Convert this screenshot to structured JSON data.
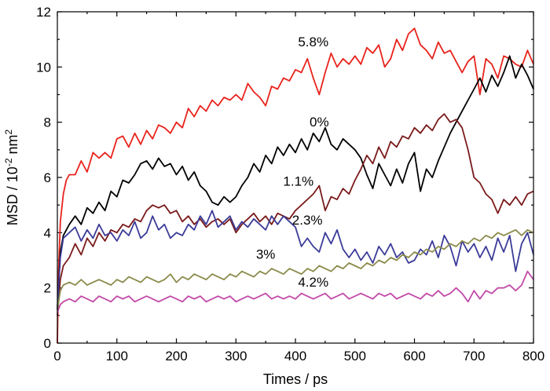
{
  "chart_data": {
    "type": "line",
    "title": "",
    "xlabel": "Times / ps",
    "ylabel_main": "MSD / 10",
    "ylabel_exp": "-2",
    "ylabel_unit": " nm",
    "ylabel_unit_exp": "2",
    "xlim": [
      0,
      800
    ],
    "ylim": [
      0,
      12
    ],
    "x_ticks": [
      0,
      100,
      200,
      300,
      400,
      500,
      600,
      700,
      800
    ],
    "y_ticks": [
      0,
      2,
      4,
      6,
      8,
      10,
      12
    ],
    "grid": false,
    "legend": "none (series labelled inline)",
    "series": [
      {
        "name": "5.8%",
        "color": "#e8231c",
        "label_at": [
          430,
          10.75
        ],
        "x": [
          0,
          2,
          5,
          10,
          15,
          20,
          30,
          40,
          50,
          60,
          70,
          80,
          90,
          100,
          110,
          120,
          130,
          140,
          150,
          160,
          170,
          180,
          190,
          200,
          210,
          220,
          230,
          240,
          250,
          260,
          270,
          280,
          290,
          300,
          310,
          320,
          330,
          340,
          350,
          360,
          370,
          380,
          390,
          400,
          410,
          420,
          430,
          440,
          450,
          460,
          470,
          480,
          490,
          500,
          510,
          520,
          530,
          540,
          550,
          560,
          570,
          580,
          590,
          600,
          610,
          620,
          630,
          640,
          650,
          660,
          670,
          680,
          690,
          700,
          710,
          720,
          730,
          740,
          750,
          760,
          770,
          780,
          790,
          800
        ],
        "y": [
          0.0,
          2.6,
          4.4,
          5.4,
          5.9,
          6.1,
          6.1,
          6.6,
          6.2,
          6.9,
          6.7,
          6.9,
          6.7,
          7.4,
          7.5,
          7.1,
          7.6,
          7.2,
          7.7,
          7.4,
          7.9,
          7.8,
          7.6,
          8.0,
          7.8,
          8.5,
          8.2,
          8.6,
          8.4,
          8.8,
          8.6,
          8.9,
          8.8,
          9.0,
          8.8,
          9.4,
          9.1,
          8.9,
          8.6,
          9.3,
          9.2,
          9.6,
          9.5,
          9.9,
          9.8,
          10.3,
          9.6,
          9.0,
          9.8,
          10.5,
          10.0,
          10.3,
          10.1,
          10.4,
          10.1,
          10.7,
          10.5,
          10.8,
          10.0,
          10.3,
          11.0,
          10.6,
          11.2,
          11.4,
          10.8,
          10.6,
          10.3,
          10.9,
          10.5,
          10.6,
          10.2,
          9.8,
          10.2,
          10.4,
          9.0,
          10.3,
          10.1,
          9.6,
          10.4,
          10.3,
          10.1,
          10.0,
          10.6,
          10.1
        ]
      },
      {
        "name": "0%",
        "color": "#000000",
        "label_at": [
          440,
          7.85
        ],
        "x": [
          0,
          5,
          10,
          20,
          30,
          40,
          50,
          60,
          70,
          80,
          90,
          100,
          110,
          120,
          130,
          140,
          150,
          160,
          170,
          180,
          190,
          200,
          210,
          220,
          230,
          240,
          250,
          260,
          270,
          280,
          290,
          300,
          310,
          320,
          330,
          340,
          350,
          360,
          370,
          380,
          390,
          400,
          410,
          420,
          430,
          440,
          450,
          460,
          470,
          480,
          490,
          500,
          510,
          520,
          530,
          540,
          550,
          560,
          570,
          580,
          590,
          600,
          610,
          620,
          630,
          640,
          650,
          660,
          670,
          680,
          690,
          700,
          710,
          720,
          730,
          740,
          750,
          760,
          770,
          780,
          790,
          800
        ],
        "y": [
          1.2,
          3.3,
          3.9,
          4.3,
          4.6,
          4.3,
          4.9,
          4.7,
          5.1,
          4.8,
          5.5,
          5.3,
          5.9,
          5.8,
          6.1,
          6.5,
          6.6,
          6.3,
          6.7,
          6.4,
          6.5,
          6.1,
          6.4,
          5.9,
          6.2,
          5.7,
          5.5,
          5.1,
          5.0,
          5.3,
          5.1,
          5.3,
          5.7,
          6.0,
          6.5,
          6.2,
          6.8,
          6.5,
          7.1,
          6.8,
          7.2,
          6.9,
          7.4,
          7.0,
          7.6,
          7.3,
          7.8,
          7.2,
          7.0,
          7.4,
          7.2,
          7.0,
          6.7,
          6.1,
          5.6,
          6.5,
          6.1,
          5.7,
          6.3,
          5.8,
          6.5,
          6.9,
          5.5,
          6.3,
          6.0,
          6.6,
          7.1,
          7.6,
          8.0,
          8.4,
          8.8,
          9.2,
          9.6,
          9.1,
          9.7,
          9.3,
          9.8,
          10.4,
          9.6,
          10.1,
          9.7,
          9.2
        ]
      },
      {
        "name": "1.1%",
        "color": "#7a1a1a",
        "label_at": [
          405,
          5.7
        ],
        "x": [
          0,
          5,
          10,
          20,
          30,
          40,
          50,
          60,
          70,
          80,
          90,
          100,
          110,
          120,
          130,
          140,
          150,
          160,
          170,
          180,
          190,
          200,
          210,
          220,
          230,
          240,
          250,
          260,
          270,
          280,
          290,
          300,
          310,
          320,
          330,
          340,
          350,
          360,
          370,
          380,
          390,
          400,
          410,
          420,
          430,
          440,
          450,
          460,
          470,
          480,
          490,
          500,
          510,
          520,
          530,
          540,
          550,
          560,
          570,
          580,
          590,
          600,
          610,
          620,
          630,
          640,
          650,
          660,
          670,
          680,
          690,
          700,
          710,
          720,
          730,
          740,
          750,
          760,
          770,
          780,
          790,
          800
        ],
        "y": [
          1.0,
          2.3,
          2.8,
          3.1,
          3.6,
          3.2,
          3.8,
          3.5,
          4.0,
          3.7,
          4.1,
          4.0,
          4.3,
          4.2,
          4.5,
          4.4,
          4.8,
          5.0,
          4.9,
          5.0,
          4.7,
          4.8,
          4.4,
          4.6,
          4.3,
          4.5,
          4.2,
          4.4,
          4.5,
          4.3,
          4.5,
          4.0,
          4.3,
          4.5,
          4.7,
          4.4,
          4.6,
          4.3,
          4.7,
          4.6,
          4.5,
          4.8,
          5.0,
          5.2,
          5.4,
          5.7,
          4.8,
          5.3,
          5.2,
          5.6,
          5.4,
          5.9,
          6.3,
          6.8,
          6.5,
          7.1,
          6.7,
          7.3,
          7.1,
          7.5,
          7.4,
          7.8,
          7.6,
          7.9,
          7.7,
          8.1,
          8.3,
          8.0,
          8.1,
          7.8,
          7.0,
          6.0,
          5.8,
          5.4,
          5.2,
          4.7,
          5.2,
          5.0,
          5.3,
          5.0,
          5.4,
          5.5
        ]
      },
      {
        "name": "2.3%",
        "color": "#3b3b99",
        "label_at": [
          420,
          4.3
        ],
        "x": [
          0,
          5,
          10,
          20,
          30,
          40,
          50,
          60,
          70,
          80,
          90,
          100,
          110,
          120,
          130,
          140,
          150,
          160,
          170,
          180,
          190,
          200,
          210,
          220,
          230,
          240,
          250,
          260,
          270,
          280,
          290,
          300,
          310,
          320,
          330,
          340,
          350,
          360,
          370,
          380,
          390,
          400,
          410,
          420,
          430,
          440,
          450,
          460,
          470,
          480,
          490,
          500,
          510,
          520,
          530,
          540,
          550,
          560,
          570,
          580,
          590,
          600,
          610,
          620,
          630,
          640,
          650,
          660,
          670,
          680,
          690,
          700,
          710,
          720,
          730,
          740,
          750,
          760,
          770,
          780,
          790,
          800
        ],
        "y": [
          1.3,
          3.1,
          3.8,
          4.0,
          4.2,
          3.7,
          4.1,
          3.8,
          4.3,
          3.9,
          4.0,
          3.7,
          4.1,
          3.9,
          4.4,
          3.8,
          4.0,
          4.6,
          4.1,
          4.3,
          3.8,
          4.0,
          3.9,
          4.3,
          4.1,
          4.6,
          4.3,
          4.8,
          4.2,
          4.4,
          4.6,
          4.1,
          4.4,
          4.2,
          4.5,
          4.3,
          4.1,
          4.6,
          4.3,
          4.6,
          4.4,
          4.2,
          3.5,
          3.8,
          3.5,
          3.3,
          4.0,
          3.6,
          4.1,
          3.4,
          3.1,
          3.4,
          3.0,
          3.3,
          2.9,
          3.5,
          3.2,
          3.6,
          3.1,
          3.3,
          2.9,
          3.0,
          3.4,
          3.2,
          3.7,
          3.1,
          3.9,
          3.5,
          2.8,
          3.7,
          3.3,
          3.6,
          3.1,
          3.5,
          3.0,
          3.8,
          3.3,
          3.9,
          2.6,
          3.6,
          4.0,
          3.2
        ]
      },
      {
        "name": "3%",
        "color": "#8a8a4a",
        "label_at": [
          350,
          3.05
        ],
        "x": [
          0,
          5,
          10,
          20,
          30,
          40,
          50,
          60,
          70,
          80,
          90,
          100,
          110,
          120,
          130,
          140,
          150,
          160,
          170,
          180,
          190,
          200,
          210,
          220,
          230,
          240,
          250,
          260,
          270,
          280,
          290,
          300,
          310,
          320,
          330,
          340,
          350,
          360,
          370,
          380,
          390,
          400,
          410,
          420,
          430,
          440,
          450,
          460,
          470,
          480,
          490,
          500,
          510,
          520,
          530,
          540,
          550,
          560,
          570,
          580,
          590,
          600,
          610,
          620,
          630,
          640,
          650,
          660,
          670,
          680,
          690,
          700,
          710,
          720,
          730,
          740,
          750,
          760,
          770,
          780,
          790,
          800
        ],
        "y": [
          1.2,
          1.9,
          2.1,
          2.2,
          2.1,
          2.3,
          2.1,
          2.2,
          2.3,
          2.2,
          2.1,
          2.3,
          2.2,
          2.4,
          2.3,
          2.2,
          2.4,
          2.3,
          2.2,
          2.3,
          2.5,
          2.2,
          2.4,
          2.3,
          2.5,
          2.4,
          2.3,
          2.5,
          2.4,
          2.3,
          2.5,
          2.4,
          2.6,
          2.5,
          2.4,
          2.6,
          2.5,
          2.7,
          2.6,
          2.5,
          2.7,
          2.6,
          2.5,
          2.7,
          2.6,
          2.8,
          2.7,
          2.6,
          2.8,
          2.7,
          2.9,
          2.8,
          2.7,
          2.9,
          2.8,
          3.0,
          2.9,
          3.1,
          3.0,
          3.2,
          3.1,
          3.3,
          3.2,
          3.4,
          3.3,
          3.5,
          3.4,
          3.6,
          3.5,
          3.7,
          3.6,
          3.8,
          3.7,
          3.9,
          3.8,
          4.0,
          3.9,
          4.0,
          4.1,
          3.9,
          4.1,
          4.0
        ]
      },
      {
        "name": "4.2%",
        "color": "#c24aa8",
        "label_at": [
          430,
          2.05
        ],
        "x": [
          0,
          5,
          10,
          20,
          30,
          40,
          50,
          60,
          70,
          80,
          90,
          100,
          110,
          120,
          130,
          140,
          150,
          160,
          170,
          180,
          190,
          200,
          210,
          220,
          230,
          240,
          250,
          260,
          270,
          280,
          290,
          300,
          310,
          320,
          330,
          340,
          350,
          360,
          370,
          380,
          390,
          400,
          410,
          420,
          430,
          440,
          450,
          460,
          470,
          480,
          490,
          500,
          510,
          520,
          530,
          540,
          550,
          560,
          570,
          580,
          590,
          600,
          610,
          620,
          630,
          640,
          650,
          660,
          670,
          680,
          690,
          700,
          710,
          720,
          730,
          740,
          750,
          760,
          770,
          780,
          790,
          800
        ],
        "y": [
          1.1,
          1.4,
          1.5,
          1.6,
          1.5,
          1.7,
          1.6,
          1.5,
          1.7,
          1.6,
          1.5,
          1.7,
          1.6,
          1.7,
          1.5,
          1.6,
          1.7,
          1.6,
          1.5,
          1.6,
          1.7,
          1.6,
          1.5,
          1.7,
          1.6,
          1.7,
          1.5,
          1.6,
          1.7,
          1.6,
          1.7,
          1.5,
          1.6,
          1.7,
          1.6,
          1.7,
          1.8,
          1.6,
          1.7,
          1.6,
          1.7,
          1.6,
          1.8,
          1.7,
          1.6,
          1.7,
          1.8,
          1.6,
          1.7,
          1.8,
          1.6,
          1.7,
          1.8,
          1.7,
          1.6,
          1.8,
          1.7,
          1.8,
          1.6,
          1.7,
          1.8,
          1.7,
          1.6,
          1.8,
          1.7,
          1.9,
          1.7,
          1.8,
          2.0,
          1.8,
          1.5,
          1.9,
          1.6,
          1.9,
          1.8,
          2.0,
          2.0,
          2.1,
          1.9,
          2.1,
          2.6,
          2.3
        ]
      }
    ]
  }
}
